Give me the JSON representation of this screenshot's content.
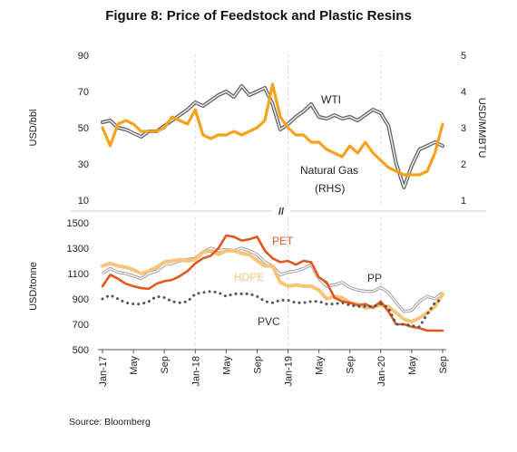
{
  "title": "Figure 8: Price of Feedstock and Plastic Resins",
  "source": "Source: Bloomberg",
  "chart_data": [
    {
      "type": "line",
      "panel": "top",
      "x": [
        "2017-01",
        "2017-02",
        "2017-03",
        "2017-04",
        "2017-05",
        "2017-06",
        "2017-07",
        "2017-08",
        "2017-09",
        "2017-10",
        "2017-11",
        "2017-12",
        "2018-01",
        "2018-02",
        "2018-03",
        "2018-04",
        "2018-05",
        "2018-06",
        "2018-07",
        "2018-08",
        "2018-09",
        "2018-10",
        "2018-11",
        "2018-12",
        "2019-01",
        "2019-02",
        "2019-03",
        "2019-04",
        "2019-05",
        "2019-06",
        "2019-07",
        "2019-08",
        "2019-09",
        "2019-10",
        "2019-11",
        "2019-12",
        "2020-01",
        "2020-02",
        "2020-03",
        "2020-04",
        "2020-05",
        "2020-06",
        "2020-07",
        "2020-08",
        "2020-09"
      ],
      "ylabel": "USD/bbl",
      "ylim": [
        10,
        90
      ],
      "yticks": [
        "10",
        "30",
        "50",
        "70",
        "90"
      ],
      "y2label": "USD/MMBTU",
      "y2lim": [
        1,
        5
      ],
      "y2ticks": [
        "1",
        "2",
        "3",
        "4",
        "5"
      ],
      "grid": false,
      "colors": {
        "WTI": "#5e5e5e",
        "Natural Gas": "#f5a21c"
      },
      "series": [
        {
          "name": "WTI",
          "axis": "left",
          "values": [
            53,
            54,
            50,
            49,
            47,
            45,
            48,
            48,
            51,
            54,
            57,
            60,
            64,
            62,
            65,
            68,
            70,
            67,
            73,
            68,
            70,
            72,
            63,
            49,
            52,
            56,
            59,
            63,
            56,
            55,
            57,
            55,
            56,
            54,
            57,
            60,
            58,
            51,
            30,
            17,
            29,
            38,
            40,
            42,
            40
          ]
        },
        {
          "name": "Natural Gas",
          "axis": "right",
          "values": [
            3.0,
            2.5,
            3.1,
            3.2,
            3.1,
            2.9,
            2.9,
            2.9,
            3.0,
            3.3,
            3.2,
            3.1,
            3.5,
            2.8,
            2.7,
            2.8,
            2.8,
            2.9,
            2.8,
            2.9,
            3.0,
            3.2,
            4.2,
            3.3,
            3.0,
            2.8,
            2.8,
            2.6,
            2.6,
            2.4,
            2.3,
            2.2,
            2.5,
            2.3,
            2.6,
            2.3,
            2.1,
            1.9,
            1.8,
            1.7,
            1.7,
            1.7,
            1.8,
            2.3,
            3.1
          ]
        }
      ],
      "annotations": [
        {
          "text": "WTI",
          "target": "WTI"
        },
        {
          "text": "Natural Gas",
          "target": "Natural Gas"
        },
        {
          "text": "(RHS)",
          "target": "Natural Gas"
        }
      ]
    },
    {
      "type": "line",
      "panel": "bottom",
      "x": [
        "2017-01",
        "2017-02",
        "2017-03",
        "2017-04",
        "2017-05",
        "2017-06",
        "2017-07",
        "2017-08",
        "2017-09",
        "2017-10",
        "2017-11",
        "2017-12",
        "2018-01",
        "2018-02",
        "2018-03",
        "2018-04",
        "2018-05",
        "2018-06",
        "2018-07",
        "2018-08",
        "2018-09",
        "2018-10",
        "2018-11",
        "2018-12",
        "2019-01",
        "2019-02",
        "2019-03",
        "2019-04",
        "2019-05",
        "2019-06",
        "2019-07",
        "2019-08",
        "2019-09",
        "2019-10",
        "2019-11",
        "2019-12",
        "2020-01",
        "2020-02",
        "2020-03",
        "2020-04",
        "2020-05",
        "2020-06",
        "2020-07",
        "2020-08",
        "2020-09"
      ],
      "tick_labels": [
        "Jan-17",
        "May",
        "Sep",
        "Jan-18",
        "May",
        "Sep",
        "Jan-19",
        "May",
        "Sep",
        "Jan-20",
        "May",
        "Sep"
      ],
      "ylabel": "USD/tonne",
      "ylim": [
        500,
        1500
      ],
      "yticks": [
        "500",
        "700",
        "900",
        "1100",
        "1300",
        "1500"
      ],
      "grid": false,
      "colors": {
        "PET": "#e2571e",
        "HDPE": "#f7c47a",
        "PP": "#a9a1a6",
        "PVC": "#555555"
      },
      "series": [
        {
          "name": "PET",
          "values": [
            1000,
            1090,
            1060,
            1020,
            1000,
            985,
            980,
            1020,
            1040,
            1050,
            1080,
            1120,
            1180,
            1220,
            1240,
            1300,
            1400,
            1390,
            1360,
            1370,
            1390,
            1280,
            1220,
            1190,
            1200,
            1170,
            1200,
            1190,
            1070,
            1030,
            910,
            880,
            870,
            850,
            860,
            830,
            880,
            800,
            700,
            700,
            680,
            670,
            650,
            650,
            650
          ]
        },
        {
          "name": "HDPE",
          "values": [
            1160,
            1180,
            1160,
            1150,
            1130,
            1100,
            1120,
            1150,
            1190,
            1200,
            1210,
            1200,
            1210,
            1270,
            1280,
            1250,
            1280,
            1280,
            1260,
            1250,
            1200,
            1160,
            1160,
            1030,
            1000,
            1010,
            1000,
            1000,
            970,
            900,
            920,
            910,
            870,
            860,
            830,
            840,
            850,
            840,
            790,
            740,
            720,
            750,
            790,
            840,
            940
          ]
        },
        {
          "name": "PP",
          "values": [
            1100,
            1140,
            1110,
            1100,
            1080,
            1060,
            1100,
            1120,
            1170,
            1180,
            1200,
            1210,
            1220,
            1270,
            1300,
            1280,
            1290,
            1280,
            1300,
            1280,
            1250,
            1190,
            1160,
            1090,
            1110,
            1120,
            1140,
            1170,
            1060,
            1000,
            1010,
            1030,
            990,
            970,
            960,
            960,
            990,
            950,
            870,
            800,
            810,
            880,
            920,
            900,
            950
          ]
        },
        {
          "name": "PVC",
          "values": [
            900,
            930,
            900,
            870,
            860,
            860,
            880,
            920,
            910,
            880,
            870,
            880,
            940,
            950,
            960,
            950,
            920,
            940,
            940,
            940,
            920,
            880,
            870,
            890,
            890,
            870,
            870,
            880,
            880,
            860,
            860,
            870,
            850,
            840,
            840,
            840,
            860,
            830,
            700,
            700,
            690,
            680,
            780,
            870,
            900
          ]
        }
      ],
      "annotations": [
        {
          "text": "PET",
          "target": "PET"
        },
        {
          "text": "HDPE",
          "target": "HDPE"
        },
        {
          "text": "PP",
          "target": "PP"
        },
        {
          "text": "PVC",
          "target": "PVC"
        }
      ]
    }
  ],
  "axis_break_mark": "//"
}
